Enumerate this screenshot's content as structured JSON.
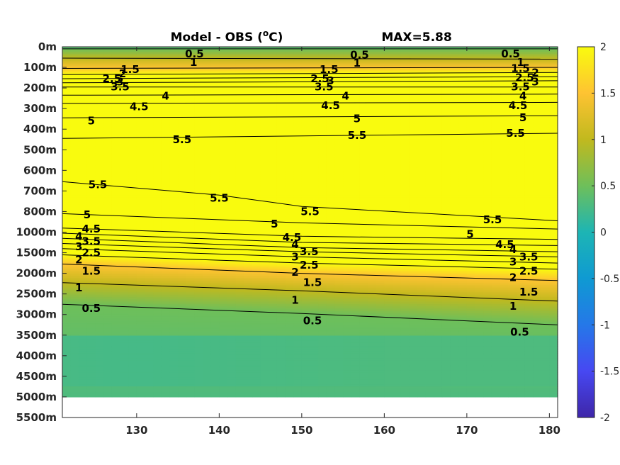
{
  "chart_data": {
    "type": "heatmap",
    "title": "Model - OBS (",
    "title_unit_sup": "o",
    "title_unit_end": "C)",
    "max_text": "MAX=5.88",
    "x_ticks": [
      130,
      140,
      150,
      160,
      170,
      180
    ],
    "x_range": [
      121,
      181
    ],
    "y_ticks": [
      {
        "label": "0m",
        "depth": 0
      },
      {
        "label": "100m",
        "depth": 100
      },
      {
        "label": "200m",
        "depth": 200
      },
      {
        "label": "300m",
        "depth": 300
      },
      {
        "label": "400m",
        "depth": 400
      },
      {
        "label": "500m",
        "depth": 500
      },
      {
        "label": "600m",
        "depth": 600
      },
      {
        "label": "700m",
        "depth": 700
      },
      {
        "label": "800m",
        "depth": 800
      },
      {
        "label": "1000m",
        "depth": 1000
      },
      {
        "label": "1500m",
        "depth": 1500
      },
      {
        "label": "2000m",
        "depth": 2000
      },
      {
        "label": "2500m",
        "depth": 2500
      },
      {
        "label": "3000m",
        "depth": 3000
      },
      {
        "label": "3500m",
        "depth": 3500
      },
      {
        "label": "4000m",
        "depth": 4000
      },
      {
        "label": "4500m",
        "depth": 4500
      },
      {
        "label": "5000m",
        "depth": 5000
      },
      {
        "label": "5500m",
        "depth": 5500
      }
    ],
    "data_bottom_depth": 5000,
    "colorbar": {
      "range": [
        -2,
        2
      ],
      "ticks": [
        "2",
        "1.5",
        "1",
        "0.5",
        "0",
        "-0.5",
        "-1",
        "-1.5",
        "-2"
      ],
      "colormap": "parula"
    },
    "contour_lines": [
      {
        "level": 0.5,
        "points": [
          [
            121,
            0.1
          ],
          [
            181,
            0.1
          ]
        ]
      },
      {
        "level": 1,
        "points": [
          [
            121,
            0.55
          ],
          [
            181,
            0.6
          ]
        ]
      },
      {
        "level": 1.5,
        "points": [
          [
            121,
            1.05
          ],
          [
            181,
            1.0
          ]
        ]
      },
      {
        "level": 2,
        "points": [
          [
            121,
            1.35
          ],
          [
            181,
            1.25
          ]
        ]
      },
      {
        "level": 2.5,
        "points": [
          [
            121,
            1.55
          ],
          [
            181,
            1.45
          ]
        ]
      },
      {
        "level": 3,
        "points": [
          [
            121,
            1.75
          ],
          [
            181,
            1.65
          ]
        ]
      },
      {
        "level": 3.5,
        "points": [
          [
            121,
            1.95
          ],
          [
            181,
            1.95
          ]
        ]
      },
      {
        "level": 4,
        "points": [
          [
            121,
            2.35
          ],
          [
            181,
            2.3
          ]
        ]
      },
      {
        "level": 4.5,
        "points": [
          [
            121,
            2.75
          ],
          [
            181,
            2.7
          ]
        ]
      },
      {
        "level": 5,
        "points": [
          [
            121,
            3.45
          ],
          [
            181,
            3.35
          ]
        ]
      },
      {
        "level": 5.5,
        "points": [
          [
            121,
            4.45
          ],
          [
            181,
            4.2
          ]
        ]
      },
      {
        "level": 5.5,
        "points": [
          [
            121,
            6.55
          ],
          [
            140,
            7.2
          ],
          [
            150,
            7.75
          ],
          [
            181,
            8.45
          ]
        ]
      },
      {
        "level": 5,
        "points": [
          [
            121,
            8.1
          ],
          [
            150,
            8.55
          ],
          [
            181,
            8.85
          ]
        ]
      },
      {
        "level": 4.5,
        "points": [
          [
            121,
            8.8
          ],
          [
            150,
            9.2
          ],
          [
            181,
            9.35
          ]
        ]
      },
      {
        "level": 4,
        "points": [
          [
            121,
            9.05
          ],
          [
            150,
            9.5
          ],
          [
            181,
            9.65
          ]
        ]
      },
      {
        "level": 3.5,
        "points": [
          [
            121,
            9.3
          ],
          [
            150,
            9.75
          ],
          [
            181,
            9.95
          ]
        ]
      },
      {
        "level": 3,
        "points": [
          [
            121,
            9.55
          ],
          [
            150,
            9.95
          ],
          [
            181,
            10.2
          ]
        ]
      },
      {
        "level": 2.5,
        "points": [
          [
            121,
            9.8
          ],
          [
            150,
            10.2
          ],
          [
            181,
            10.5
          ]
        ]
      },
      {
        "level": 2,
        "points": [
          [
            121,
            10.1
          ],
          [
            150,
            10.5
          ],
          [
            181,
            10.8
          ]
        ]
      },
      {
        "level": 1.5,
        "points": [
          [
            121,
            10.55
          ],
          [
            150,
            11.0
          ],
          [
            181,
            11.35
          ]
        ]
      },
      {
        "level": 1,
        "points": [
          [
            121,
            11.45
          ],
          [
            150,
            11.85
          ],
          [
            181,
            12.35
          ]
        ]
      },
      {
        "level": 0.5,
        "points": [
          [
            121,
            12.5
          ],
          [
            150,
            12.95
          ],
          [
            181,
            13.5
          ]
        ]
      }
    ],
    "contour_labels": [
      {
        "text": "0.5",
        "lon": 137,
        "y": 0.35
      },
      {
        "text": "1",
        "lon": 136.9,
        "y": 0.75
      },
      {
        "text": "1.5",
        "lon": 129.2,
        "y": 1.1
      },
      {
        "text": "2",
        "lon": 128.3,
        "y": 1.3
      },
      {
        "text": "2.5",
        "lon": 127,
        "y": 1.55
      },
      {
        "text": "3",
        "lon": 128,
        "y": 1.7
      },
      {
        "text": "3.5",
        "lon": 128,
        "y": 1.95
      },
      {
        "text": "4",
        "lon": 133.5,
        "y": 2.4
      },
      {
        "text": "4.5",
        "lon": 130.3,
        "y": 2.9
      },
      {
        "text": "5",
        "lon": 124.5,
        "y": 3.6
      },
      {
        "text": "5.5",
        "lon": 135.5,
        "y": 4.5
      },
      {
        "text": "0.5",
        "lon": 157,
        "y": 0.4
      },
      {
        "text": "1",
        "lon": 156.7,
        "y": 0.8
      },
      {
        "text": "1.5",
        "lon": 153.3,
        "y": 1.1
      },
      {
        "text": "2.5",
        "lon": 152.2,
        "y": 1.55
      },
      {
        "text": "3",
        "lon": 153.5,
        "y": 1.65
      },
      {
        "text": "3.5",
        "lon": 152.7,
        "y": 1.95
      },
      {
        "text": "4",
        "lon": 155.3,
        "y": 2.4
      },
      {
        "text": "4.5",
        "lon": 153.5,
        "y": 2.85
      },
      {
        "text": "5",
        "lon": 156.7,
        "y": 3.5
      },
      {
        "text": "5.5",
        "lon": 156.7,
        "y": 4.3
      },
      {
        "text": "0.5",
        "lon": 175.3,
        "y": 0.35
      },
      {
        "text": "1",
        "lon": 176.5,
        "y": 0.75
      },
      {
        "text": "1.5",
        "lon": 176.5,
        "y": 1.05
      },
      {
        "text": "2",
        "lon": 178.3,
        "y": 1.25
      },
      {
        "text": "2.5",
        "lon": 177,
        "y": 1.5
      },
      {
        "text": "3",
        "lon": 178.3,
        "y": 1.7
      },
      {
        "text": "3.5",
        "lon": 176.5,
        "y": 1.95
      },
      {
        "text": "4",
        "lon": 176.8,
        "y": 2.4
      },
      {
        "text": "4.5",
        "lon": 176.2,
        "y": 2.85
      },
      {
        "text": "5",
        "lon": 176.8,
        "y": 3.45
      },
      {
        "text": "5.5",
        "lon": 175.9,
        "y": 4.2
      },
      {
        "text": "5.5",
        "lon": 125.3,
        "y": 6.7
      },
      {
        "text": "5.5",
        "lon": 140,
        "y": 7.35
      },
      {
        "text": "5.5",
        "lon": 151,
        "y": 8.0
      },
      {
        "text": "5.5",
        "lon": 173.1,
        "y": 8.4
      },
      {
        "text": "5",
        "lon": 124,
        "y": 8.15
      },
      {
        "text": "5",
        "lon": 146.7,
        "y": 8.6
      },
      {
        "text": "5",
        "lon": 170.4,
        "y": 9.1
      },
      {
        "text": "4.5",
        "lon": 124.5,
        "y": 8.85
      },
      {
        "text": "4.5",
        "lon": 148.8,
        "y": 9.25
      },
      {
        "text": "4.5",
        "lon": 174.6,
        "y": 9.6
      },
      {
        "text": "4",
        "lon": 123,
        "y": 9.2
      },
      {
        "text": "4",
        "lon": 149.2,
        "y": 9.6
      },
      {
        "text": "4",
        "lon": 175.6,
        "y": 9.85
      },
      {
        "text": "3.5",
        "lon": 124.5,
        "y": 9.45
      },
      {
        "text": "3.5",
        "lon": 150.9,
        "y": 9.95
      },
      {
        "text": "3.5",
        "lon": 177.5,
        "y": 10.2
      },
      {
        "text": "3",
        "lon": 123,
        "y": 9.7
      },
      {
        "text": "3",
        "lon": 149.2,
        "y": 10.2
      },
      {
        "text": "3",
        "lon": 175.6,
        "y": 10.45
      },
      {
        "text": "2.5",
        "lon": 124.5,
        "y": 10.0
      },
      {
        "text": "2.5",
        "lon": 150.9,
        "y": 10.6
      },
      {
        "text": "2.5",
        "lon": 177.5,
        "y": 10.9
      },
      {
        "text": "2",
        "lon": 123,
        "y": 10.35
      },
      {
        "text": "2",
        "lon": 149.2,
        "y": 10.95
      },
      {
        "text": "2",
        "lon": 175.6,
        "y": 11.2
      },
      {
        "text": "1.5",
        "lon": 124.5,
        "y": 10.9
      },
      {
        "text": "1.5",
        "lon": 151.3,
        "y": 11.45
      },
      {
        "text": "1.5",
        "lon": 177.5,
        "y": 11.9
      },
      {
        "text": "1",
        "lon": 123,
        "y": 11.7
      },
      {
        "text": "1",
        "lon": 149.2,
        "y": 12.3
      },
      {
        "text": "1",
        "lon": 175.6,
        "y": 12.6
      },
      {
        "text": "0.5",
        "lon": 124.5,
        "y": 12.7
      },
      {
        "text": "0.5",
        "lon": 151.3,
        "y": 13.3
      },
      {
        "text": "0.5",
        "lon": 176.4,
        "y": 13.85
      }
    ]
  }
}
